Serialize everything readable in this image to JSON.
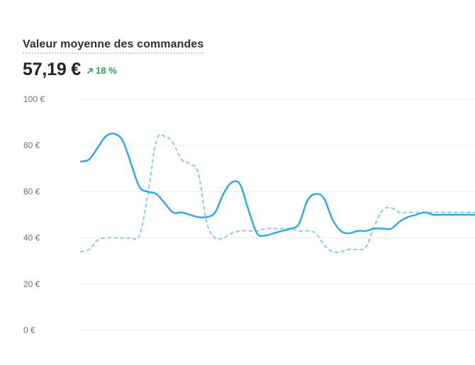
{
  "metric": {
    "title": "Valeur moyenne des commandes",
    "value": "57,19 €",
    "delta": "18 %",
    "delta_direction": "up",
    "delta_color": "#2e9e57",
    "icon": "arrow-up-right-icon"
  },
  "colors": {
    "series_current": "#29a9e1",
    "series_previous": "#8cc8ec",
    "grid": "#ebebeb",
    "tick_label": "#6d7175"
  },
  "chart_data": {
    "type": "line",
    "title": "Valeur moyenne des commandes",
    "xlabel": "",
    "ylabel": "",
    "ylim": [
      0,
      100
    ],
    "yticks": [
      0,
      20,
      40,
      60,
      80,
      100
    ],
    "ytick_labels": [
      "0 €",
      "20 €",
      "40 €",
      "60 €",
      "80 €",
      "100 €"
    ],
    "grid": true,
    "x": [
      0,
      1,
      2,
      3,
      4,
      5,
      6,
      7,
      8,
      9,
      10,
      11,
      12,
      13,
      14,
      15,
      16,
      17,
      18,
      19,
      20,
      21,
      22,
      23,
      24,
      25,
      26,
      27,
      28,
      29,
      30,
      31,
      32,
      33,
      34,
      35,
      36,
      37,
      38,
      39,
      40,
      41,
      42,
      43,
      44,
      45,
      46,
      47
    ],
    "series": [
      {
        "style": "solid",
        "values": [
          73,
          74,
          79,
          84,
          85,
          82,
          72,
          62,
          60,
          59,
          55,
          51,
          51,
          50,
          49,
          49,
          51,
          59,
          64,
          63,
          52,
          42,
          41,
          42,
          43,
          44,
          46,
          56,
          59,
          57,
          48,
          43,
          42,
          43,
          43,
          44,
          44,
          44,
          47,
          49,
          50,
          51,
          50,
          50,
          50,
          50,
          50,
          50
        ]
      },
      {
        "style": "dashed",
        "values": [
          34,
          35,
          39,
          40,
          40,
          40,
          40,
          41,
          59,
          82,
          84,
          81,
          74,
          72,
          68,
          47,
          40,
          40,
          42,
          43,
          43,
          43,
          44,
          44,
          44,
          44,
          43,
          43,
          42,
          37,
          34,
          34,
          35,
          35,
          36,
          45,
          52,
          53,
          51,
          51,
          51,
          51,
          51,
          51,
          51,
          51,
          51,
          51
        ]
      }
    ]
  }
}
